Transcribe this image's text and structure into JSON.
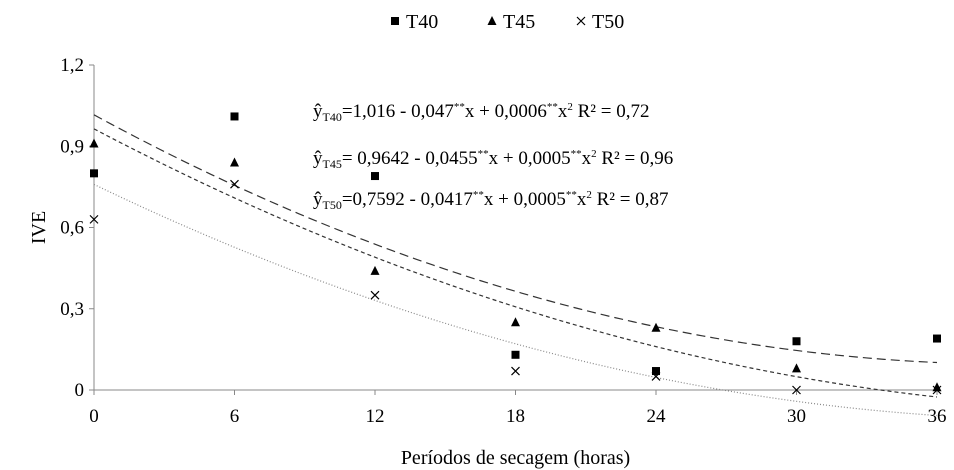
{
  "chart_data": {
    "type": "scatter",
    "x": [
      0,
      6,
      12,
      18,
      24,
      30,
      36
    ],
    "xlabel": "Períodos de secagem (horas)",
    "ylabel": "IVE",
    "xlim": [
      0,
      36
    ],
    "ylim": [
      0,
      1.2
    ],
    "x_ticks": [
      "0",
      "6",
      "12",
      "18",
      "24",
      "30",
      "36"
    ],
    "y_ticks": [
      "0",
      "0,3",
      "0,6",
      "0,9",
      "1,2"
    ],
    "grid": false,
    "legend_position": "top",
    "series": [
      {
        "name": "T40",
        "marker": "square",
        "values": [
          0.8,
          1.01,
          0.79,
          0.13,
          0.07,
          0.18,
          0.19
        ],
        "fit": {
          "a": 1.016,
          "b": -0.047,
          "c": 0.0006,
          "dash": "9,5"
        },
        "equation": {
          "lhs": "ŷ",
          "sub": "T40",
          "text": "=1,016 - 0,047",
          "sup1": "**",
          "mid": "x + 0,0006",
          "sup2": "**",
          "tail": "x",
          "sup3": "2",
          "r2": "R² = 0,72"
        }
      },
      {
        "name": "T45",
        "marker": "triangle",
        "values": [
          0.91,
          0.84,
          0.44,
          0.25,
          0.23,
          0.08,
          0.01
        ],
        "fit": {
          "a": 0.9642,
          "b": -0.0455,
          "c": 0.0005,
          "dash": "4,3"
        },
        "equation": {
          "lhs": "ŷ",
          "sub": "T45",
          "text": "= 0,9642 - 0,0455",
          "sup1": "**",
          "mid": "x + 0,0005",
          "sup2": "**",
          "tail": "x",
          "sup3": "2",
          "r2": "R² = 0,96"
        }
      },
      {
        "name": "T50",
        "marker": "x",
        "values": [
          0.63,
          0.76,
          0.35,
          0.07,
          0.05,
          0.0,
          0.0
        ],
        "fit": {
          "a": 0.7592,
          "b": -0.0417,
          "c": 0.0005,
          "dash": "1,2"
        },
        "equation": {
          "lhs": "ŷ",
          "sub": "T50",
          "text": "=0,7592 - 0,0417",
          "sup1": "**",
          "mid": "x + 0,0005",
          "sup2": "**",
          "tail": "x",
          "sup3": "2",
          "r2": "R² = 0,87"
        }
      }
    ]
  }
}
